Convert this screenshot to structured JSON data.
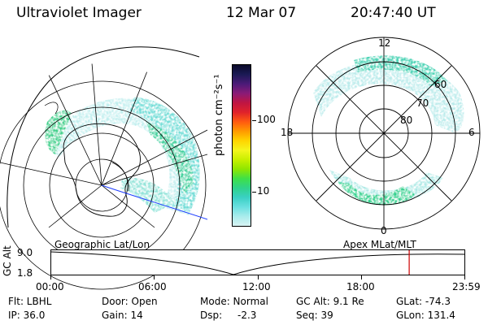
{
  "header": {
    "instrument": "Ultraviolet Imager",
    "date": "12 Mar 07",
    "time": "20:47:40 UT"
  },
  "colorbar": {
    "label": "photon cm⁻²s⁻¹",
    "ticks": [
      "100",
      "10"
    ],
    "colors": [
      "#0a0a2a",
      "#1b1a55",
      "#4b1a78",
      "#8a1b77",
      "#c01542",
      "#e0222a",
      "#ff5a10",
      "#ff9a00",
      "#ffd400",
      "#f4f61d",
      "#c8f000",
      "#8fe600",
      "#3fe048",
      "#2fd38a",
      "#3ad0c4",
      "#6ae0e0",
      "#a9ecec",
      "#d8f3f3"
    ]
  },
  "geo_panel": {
    "label": "Geographic Lat/Lon"
  },
  "apex_panel": {
    "label": "Apex  MLat/MLT",
    "mlt_labels": {
      "top": "12",
      "bottom": "0",
      "left": "18",
      "right": "6"
    },
    "lat_labels": [
      "60",
      "70",
      "80"
    ]
  },
  "timeline": {
    "axis_label": "GC Alt",
    "y_ticks": [
      "9.0",
      "1.8"
    ],
    "x_ticks": [
      "00:00",
      "06:00",
      "12:00",
      "18:00",
      "23:59"
    ],
    "marker_time": "20:47",
    "marker_color": "#cc0000"
  },
  "status": {
    "flt": "Flt: LBHL",
    "door": "Door: Open",
    "mode": "Mode: Normal",
    "gc_alt": "GC Alt: 9.1 Re",
    "glat": "GLat: -74.3",
    "ip": "IP: 36.0",
    "gain": "Gain: 14",
    "dsp_label": "Dsp:",
    "dsp_value": "-2.3",
    "seq": "Seq: 39",
    "glon": "GLon: 131.4"
  }
}
